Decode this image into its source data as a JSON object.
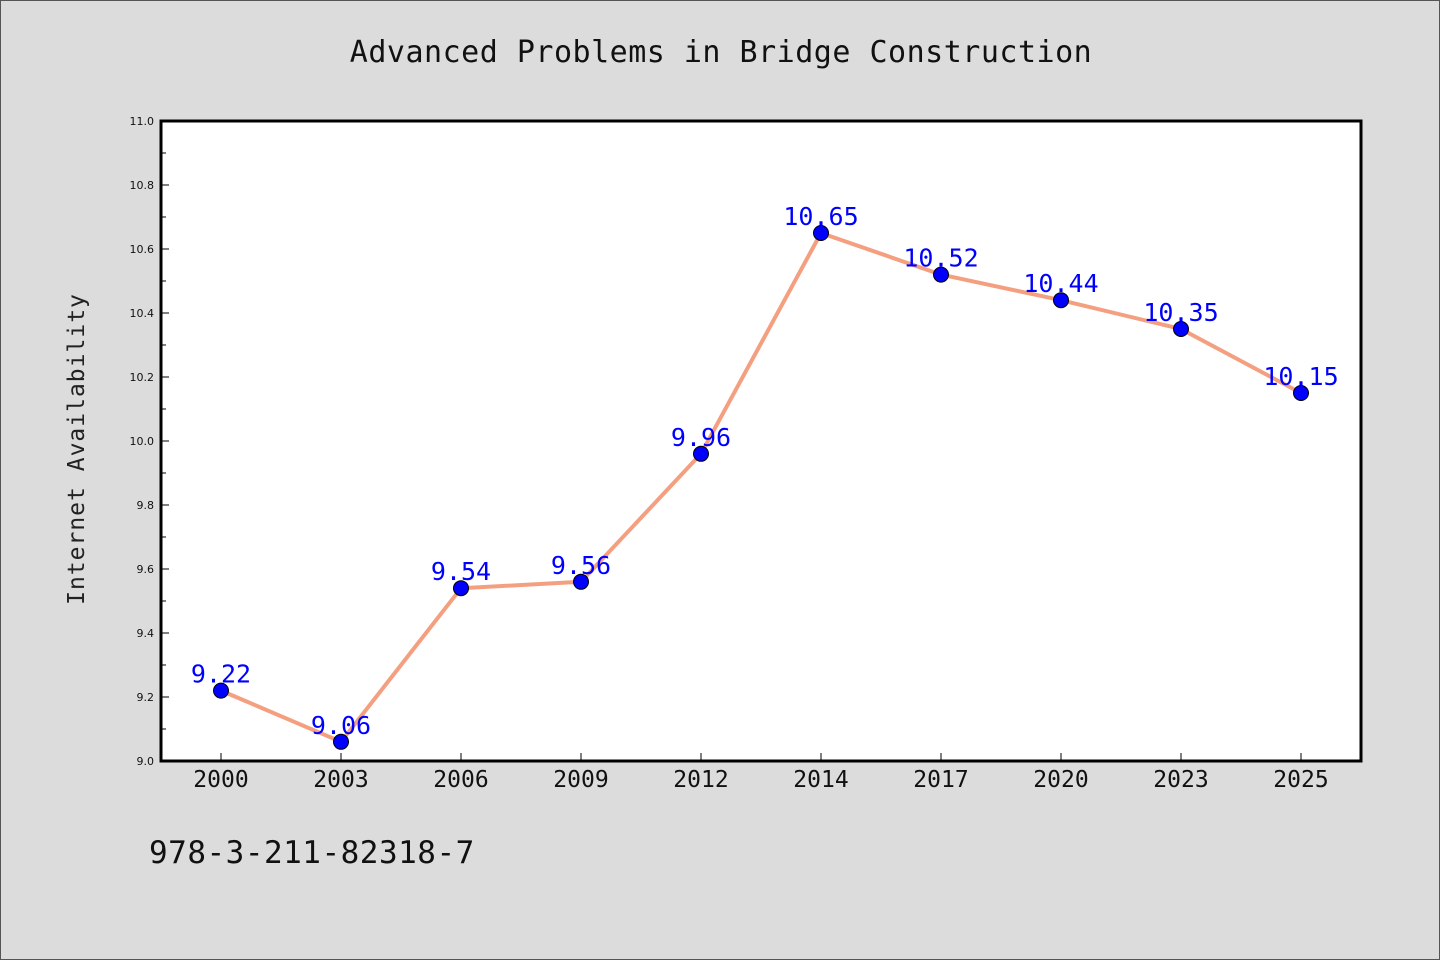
{
  "chart_data": {
    "type": "line",
    "title": "Advanced Problems in Bridge Construction",
    "xlabel": "",
    "ylabel": "Internet Availability",
    "categories": [
      "2000",
      "2003",
      "2006",
      "2009",
      "2012",
      "2014",
      "2017",
      "2020",
      "2023",
      "2025"
    ],
    "series": [
      {
        "values": [
          9.22,
          9.06,
          9.54,
          9.56,
          9.96,
          10.65,
          10.52,
          10.44,
          10.35,
          10.15
        ],
        "data_labels": [
          "9.22",
          "9.06",
          "9.54",
          "9.56",
          "9.96",
          "10.65",
          "10.52",
          "10.44",
          "10.35",
          "10.15"
        ]
      }
    ],
    "ylim": [
      9.0,
      11.0
    ],
    "y_ticks": [
      "9.0",
      "9.2",
      "9.4",
      "9.6",
      "9.8",
      "10.0",
      "10.2",
      "10.4",
      "10.6",
      "10.8",
      "11.0"
    ],
    "grid": false,
    "colors": {
      "line": "#f4a080",
      "marker": "#0000ff",
      "label": "#0000ff",
      "plot_background": "#ffffff",
      "page_background": "#dcdcdc"
    }
  },
  "footer": {
    "code": "978-3-211-82318-7"
  }
}
